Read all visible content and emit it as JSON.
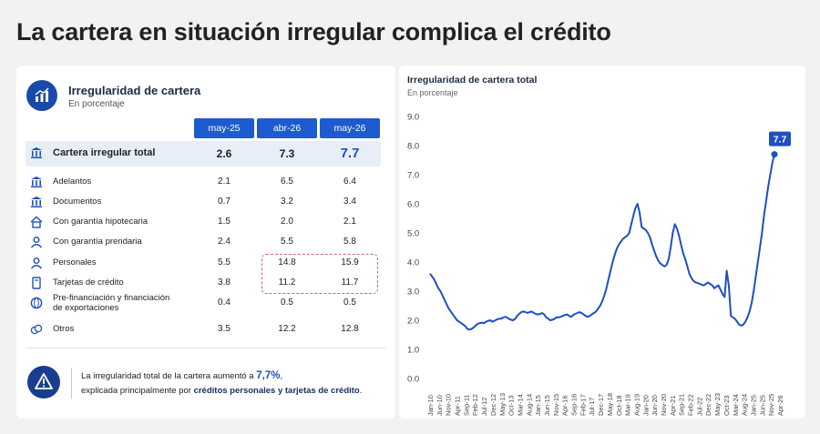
{
  "title": "La cartera en situación irregular complica el crédito",
  "colors": {
    "accent": "#1e5bd0",
    "line": "#1e4fc2",
    "highlight_border": "#d06a6a"
  },
  "table": {
    "title": "Irregularidad de cartera",
    "subtitle": "En porcentaje",
    "header_icon": "bar-chart-icon",
    "columns": [
      "may-25",
      "abr-26",
      "may-26"
    ],
    "rows": [
      {
        "label": "Cartera irregular total",
        "icon": "bank-icon",
        "values": [
          "2.6",
          "7.3",
          "7.7"
        ]
      },
      {
        "label": "Adelantos",
        "icon": "bank-icon",
        "values": [
          "2.1",
          "6.5",
          "6.4"
        ]
      },
      {
        "label": "Documentos",
        "icon": "bank-icon",
        "values": [
          "0.7",
          "3.2",
          "3.4"
        ]
      },
      {
        "label": "Con garantía hipotecaria",
        "icon": "house-icon",
        "values": [
          "1.5",
          "2.0",
          "2.1"
        ]
      },
      {
        "label": "Con garantía prendaria",
        "icon": "person-icon",
        "values": [
          "2.4",
          "5.5",
          "5.8"
        ]
      },
      {
        "label": "Personales",
        "icon": "person-icon",
        "values": [
          "5.5",
          "14.8",
          "15.9"
        ]
      },
      {
        "label": "Tarjetas de crédito",
        "icon": "card-icon",
        "values": [
          "3.8",
          "11.2",
          "11.7"
        ]
      },
      {
        "label": "Pre-financiación y financiación",
        "label2": "de exportaciones",
        "icon": "globe-icon",
        "values": [
          "0.4",
          "0.5",
          "0.5"
        ]
      },
      {
        "label": "Otros",
        "icon": "coins-icon",
        "values": [
          "3.5",
          "12.2",
          "12.8"
        ]
      }
    ]
  },
  "alert": {
    "icon": "warning-icon",
    "line1_prefix": "La irregularidad total de la cartera aumentó a ",
    "line1_value": "7,7%",
    "line1_suffix": ",",
    "line2_prefix": "explicada principalmente por ",
    "line2_bold": "créditos personales y tarjetas de crédito",
    "line2_suffix": "."
  },
  "chart_data": {
    "type": "line",
    "title": "Irregularidad de cartera total",
    "subtitle": "En porcentaje",
    "ylim": [
      0,
      9
    ],
    "yticks": [
      "9.0",
      "8.0",
      "7.0",
      "6.0",
      "5.0",
      "4.0",
      "3.0",
      "2.0",
      "1.0",
      "0.0"
    ],
    "xticks": [
      "Jan-10",
      "Jun-10",
      "Nov-10",
      "Apr-11",
      "Sep-11",
      "Feb-12",
      "Jul-12",
      "Dec-12",
      "May-13",
      "Oct-13",
      "Mar-14",
      "Aug-14",
      "Jan-15",
      "Jun-15",
      "Nov-15",
      "Apr-16",
      "Sep-16",
      "Feb-17",
      "Jul-17",
      "Dec-17",
      "May-18",
      "Oct-18",
      "Mar-19",
      "Aug-19",
      "Jan-20",
      "Jun-20",
      "Nov-20",
      "Apr-21",
      "Sep-21",
      "Feb-22",
      "Jul-22",
      "Dec-22",
      "May-23",
      "Oct-23",
      "Mar-24",
      "Aug-24",
      "Jan-25",
      "Jun-25",
      "Nov-25",
      "Apr-26"
    ],
    "end_label": "7.7",
    "grid": false,
    "series": [
      {
        "values": [
          3.6,
          3.5,
          3.4,
          3.25,
          3.1,
          3.0,
          2.85,
          2.7,
          2.55,
          2.4,
          2.3,
          2.2,
          2.1,
          2.0,
          1.95,
          1.9,
          1.85,
          1.8,
          1.7,
          1.68,
          1.7,
          1.75,
          1.82,
          1.88,
          1.9,
          1.92,
          1.9,
          1.95,
          1.98,
          2.0,
          1.95,
          1.98,
          2.02,
          2.05,
          2.05,
          2.08,
          2.12,
          2.1,
          2.05,
          2.02,
          2.0,
          2.05,
          2.15,
          2.22,
          2.28,
          2.3,
          2.28,
          2.25,
          2.28,
          2.3,
          2.25,
          2.22,
          2.2,
          2.22,
          2.25,
          2.2,
          2.1,
          2.05,
          2.0,
          2.02,
          2.05,
          2.1,
          2.1,
          2.12,
          2.15,
          2.18,
          2.2,
          2.15,
          2.12,
          2.18,
          2.22,
          2.25,
          2.28,
          2.25,
          2.2,
          2.15,
          2.12,
          2.15,
          2.2,
          2.25,
          2.3,
          2.4,
          2.5,
          2.65,
          2.85,
          3.1,
          3.4,
          3.7,
          4.0,
          4.25,
          4.45,
          4.6,
          4.7,
          4.8,
          4.85,
          4.9,
          5.0,
          5.3,
          5.6,
          5.85,
          6.0,
          5.7,
          5.2,
          5.15,
          5.1,
          5.0,
          4.85,
          4.6,
          4.4,
          4.2,
          4.05,
          3.95,
          3.9,
          3.85,
          3.9,
          4.1,
          4.5,
          5.0,
          5.3,
          5.15,
          4.9,
          4.6,
          4.3,
          4.1,
          3.85,
          3.6,
          3.45,
          3.35,
          3.3,
          3.28,
          3.25,
          3.22,
          3.2,
          3.25,
          3.3,
          3.25,
          3.2,
          3.1,
          3.15,
          3.2,
          3.05,
          2.9,
          2.8,
          3.7,
          3.2,
          2.15,
          2.1,
          2.05,
          1.95,
          1.85,
          1.82,
          1.85,
          1.95,
          2.1,
          2.3,
          2.6,
          3.0,
          3.5,
          4.0,
          4.5,
          5.0,
          5.6,
          6.1,
          6.6,
          7.0,
          7.4,
          7.7
        ]
      }
    ]
  }
}
